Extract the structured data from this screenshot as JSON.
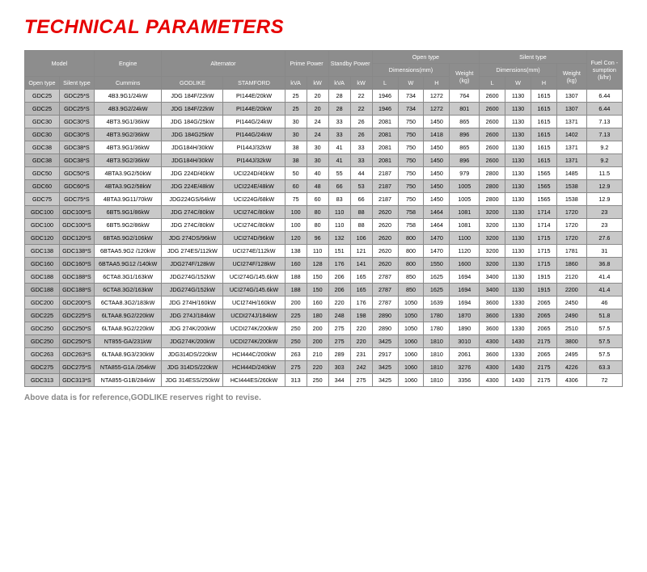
{
  "title": "TECHNICAL PARAMETERS",
  "footnote": "Above data is for reference,GODLIKE reserves right to revise.",
  "colors": {
    "title": "#e60000",
    "header_bg": "#8d8d8d",
    "header_fg": "#ffffff",
    "row_alt": "#c9c9c9",
    "row_alt_dark": "#b7b7b7",
    "border": "#888888"
  },
  "header": {
    "g_model": "Model",
    "g_engine": "Engine",
    "g_alt": "Alternator",
    "g_prime": "Prime Power",
    "g_standby": "Standby Power",
    "g_open": "Open type",
    "g_silent": "Silent type",
    "g_dim": "Dimensions(mm)",
    "g_weight": "Weight (kg)",
    "g_fc": "Fuel Con -sumption (li/hr)",
    "open": "Open type",
    "silent": "Silent type",
    "cummins": "Cummins",
    "godlike": "GODLIKE",
    "stamford": "STAMFORD",
    "kva": "kVA",
    "kw": "kW",
    "L": "L",
    "W": "W",
    "H": "H"
  },
  "rows": [
    {
      "ot": "GDC25",
      "st": "GDC25*S",
      "cu": "4B3.9G1/24kW",
      "go": "JDG 184F/22kW",
      "sf": "PI144E/20kW",
      "pk": "25",
      "pw": "20",
      "sk": "28",
      "sw": "22",
      "l": "1946",
      "w": "734",
      "h": "1272",
      "wt": "764",
      "l2": "2600",
      "w2": "1130",
      "h2": "1615",
      "wt2": "1307",
      "fc": "6.44"
    },
    {
      "ot": "GDC25",
      "st": "GDC25*S",
      "cu": "4B3.9G2/24kW",
      "go": "JDG 184F/22kW",
      "sf": "PI144E/20kW",
      "pk": "25",
      "pw": "20",
      "sk": "28",
      "sw": "22",
      "l": "1946",
      "w": "734",
      "h": "1272",
      "wt": "801",
      "l2": "2600",
      "w2": "1130",
      "h2": "1615",
      "wt2": "1307",
      "fc": "6.44"
    },
    {
      "ot": "GDC30",
      "st": "GDC30*S",
      "cu": "4BT3.9G1/36kW",
      "go": "JDG 184G/25kW",
      "sf": "PI144G/24kW",
      "pk": "30",
      "pw": "24",
      "sk": "33",
      "sw": "26",
      "l": "2081",
      "w": "750",
      "h": "1450",
      "wt": "865",
      "l2": "2600",
      "w2": "1130",
      "h2": "1615",
      "wt2": "1371",
      "fc": "7.13"
    },
    {
      "ot": "GDC30",
      "st": "GDC30*S",
      "cu": "4BT3.9G2/36kW",
      "go": "JDG 184G25kW",
      "sf": "PI144G/24kW",
      "pk": "30",
      "pw": "24",
      "sk": "33",
      "sw": "26",
      "l": "2081",
      "w": "750",
      "h": "1418",
      "wt": "896",
      "l2": "2600",
      "w2": "1130",
      "h2": "1615",
      "wt2": "1402",
      "fc": "7.13"
    },
    {
      "ot": "GDC38",
      "st": "GDC38*S",
      "cu": "4BT3.9G1/36kW",
      "go": "JDG184H/30kW",
      "sf": "PI144J/32kW",
      "pk": "38",
      "pw": "30",
      "sk": "41",
      "sw": "33",
      "l": "2081",
      "w": "750",
      "h": "1450",
      "wt": "865",
      "l2": "2600",
      "w2": "1130",
      "h2": "1615",
      "wt2": "1371",
      "fc": "9.2"
    },
    {
      "ot": "GDC38",
      "st": "GDC38*S",
      "cu": "4BT3.9G2/36kW",
      "go": "JDG184H/30kW",
      "sf": "PI144J/32kW",
      "pk": "38",
      "pw": "30",
      "sk": "41",
      "sw": "33",
      "l": "2081",
      "w": "750",
      "h": "1450",
      "wt": "896",
      "l2": "2600",
      "w2": "1130",
      "h2": "1615",
      "wt2": "1371",
      "fc": "9.2"
    },
    {
      "ot": "GDC50",
      "st": "GDC50*S",
      "cu": "4BTA3.9G2/50kW",
      "go": "JDG 224D/40kW",
      "sf": "UCI224D/40kW",
      "pk": "50",
      "pw": "40",
      "sk": "55",
      "sw": "44",
      "l": "2187",
      "w": "750",
      "h": "1450",
      "wt": "979",
      "l2": "2800",
      "w2": "1130",
      "h2": "1565",
      "wt2": "1485",
      "fc": "11.5"
    },
    {
      "ot": "GDC60",
      "st": "GDC60*S",
      "cu": "4BTA3.9G2/58kW",
      "go": "JDG 224E/48kW",
      "sf": "UCI224E/48kW",
      "pk": "60",
      "pw": "48",
      "sk": "66",
      "sw": "53",
      "l": "2187",
      "w": "750",
      "h": "1450",
      "wt": "1005",
      "l2": "2800",
      "w2": "1130",
      "h2": "1565",
      "wt2": "1538",
      "fc": "12.9"
    },
    {
      "ot": "GDC75",
      "st": "GDC75*S",
      "cu": "4BTA3.9G11/70kW",
      "go": "JDG224GS/64kW",
      "sf": "UCI224G/68kW",
      "pk": "75",
      "pw": "60",
      "sk": "83",
      "sw": "66",
      "l": "2187",
      "w": "750",
      "h": "1450",
      "wt": "1005",
      "l2": "2800",
      "w2": "1130",
      "h2": "1565",
      "wt2": "1538",
      "fc": "12.9"
    },
    {
      "ot": "GDC100",
      "st": "GDC100*S",
      "cu": "6BT5.9G1/86kW",
      "go": "JDG 274C/80kW",
      "sf": "UCI274C/80kW",
      "pk": "100",
      "pw": "80",
      "sk": "110",
      "sw": "88",
      "l": "2620",
      "w": "758",
      "h": "1464",
      "wt": "1081",
      "l2": "3200",
      "w2": "1130",
      "h2": "1714",
      "wt2": "1720",
      "fc": "23"
    },
    {
      "ot": "GDC100",
      "st": "GDC100*S",
      "cu": "6BT5.9G2/86kW",
      "go": "JDG 274C/80kW",
      "sf": "UCI274C/80kW",
      "pk": "100",
      "pw": "80",
      "sk": "110",
      "sw": "88",
      "l": "2620",
      "w": "758",
      "h": "1464",
      "wt": "1081",
      "l2": "3200",
      "w2": "1130",
      "h2": "1714",
      "wt2": "1720",
      "fc": "23"
    },
    {
      "ot": "GDC120",
      "st": "GDC120*S",
      "cu": "6BTA5.9G2/106kW",
      "go": "JDG 274DS/96kW",
      "sf": "UCI274D/96kW",
      "pk": "120",
      "pw": "96",
      "sk": "132",
      "sw": "106",
      "l": "2620",
      "w": "800",
      "h": "1470",
      "wt": "1100",
      "l2": "3200",
      "w2": "1130",
      "h2": "1715",
      "wt2": "1720",
      "fc": "27.6"
    },
    {
      "ot": "GDC138",
      "st": "GDC138*S",
      "cu": "6BTAA5.9G2 /120kW",
      "go": "JDG 274ES/112kW",
      "sf": "UCI274E/112kW",
      "pk": "138",
      "pw": "110",
      "sk": "151",
      "sw": "121",
      "l": "2620",
      "w": "800",
      "h": "1470",
      "wt": "1120",
      "l2": "3200",
      "w2": "1130",
      "h2": "1715",
      "wt2": "1781",
      "fc": "31"
    },
    {
      "ot": "GDC160",
      "st": "GDC160*S",
      "cu": "6BTAA5.9G12 /140kW",
      "go": "JDG274F/128kW",
      "sf": "UCI274F/128kW",
      "pk": "160",
      "pw": "128",
      "sk": "176",
      "sw": "141",
      "l": "2620",
      "w": "800",
      "h": "1550",
      "wt": "1600",
      "l2": "3200",
      "w2": "1130",
      "h2": "1715",
      "wt2": "1860",
      "fc": "36.8"
    },
    {
      "ot": "GDC188",
      "st": "GDC188*S",
      "cu": "6CTA8.3G1/163kW",
      "go": "JDG274G/152kW",
      "sf": "UCI274G/145.6kW",
      "pk": "188",
      "pw": "150",
      "sk": "206",
      "sw": "165",
      "l": "2787",
      "w": "850",
      "h": "1625",
      "wt": "1694",
      "l2": "3400",
      "w2": "1130",
      "h2": "1915",
      "wt2": "2120",
      "fc": "41.4"
    },
    {
      "ot": "GDC188",
      "st": "GDC188*S",
      "cu": "6CTA8.3G2/163kW",
      "go": "JDG274G/152kW",
      "sf": "UCI274G/145.6kW",
      "pk": "188",
      "pw": "150",
      "sk": "206",
      "sw": "165",
      "l": "2787",
      "w": "850",
      "h": "1625",
      "wt": "1694",
      "l2": "3400",
      "w2": "1130",
      "h2": "1915",
      "wt2": "2200",
      "fc": "41.4"
    },
    {
      "ot": "GDC200",
      "st": "GDC200*S",
      "cu": "6CTAA8.3G2/183kW",
      "go": "JDG 274H/160kW",
      "sf": "UCI274H/160kW",
      "pk": "200",
      "pw": "160",
      "sk": "220",
      "sw": "176",
      "l": "2787",
      "w": "1050",
      "h": "1639",
      "wt": "1694",
      "l2": "3600",
      "w2": "1330",
      "h2": "2065",
      "wt2": "2450",
      "fc": "46"
    },
    {
      "ot": "GDC225",
      "st": "GDC225*S",
      "cu": "6LTAA8.9G2/220kW",
      "go": "JDG 274J/184kW",
      "sf": "UCDI274J/184kW",
      "pk": "225",
      "pw": "180",
      "sk": "248",
      "sw": "198",
      "l": "2890",
      "w": "1050",
      "h": "1780",
      "wt": "1870",
      "l2": "3600",
      "w2": "1330",
      "h2": "2065",
      "wt2": "2490",
      "fc": "51.8"
    },
    {
      "ot": "GDC250",
      "st": "GDC250*S",
      "cu": "6LTAA8.9G2/220kW",
      "go": "JDG 274K/200kW",
      "sf": "UCDI274K/200kW",
      "pk": "250",
      "pw": "200",
      "sk": "275",
      "sw": "220",
      "l": "2890",
      "w": "1050",
      "h": "1780",
      "wt": "1890",
      "l2": "3600",
      "w2": "1330",
      "h2": "2065",
      "wt2": "2510",
      "fc": "57.5"
    },
    {
      "ot": "GDC250",
      "st": "GDC250*S",
      "cu": "NT855-GA/231kW",
      "go": "JDG274K/200kW",
      "sf": "UCDI274K/200kW",
      "pk": "250",
      "pw": "200",
      "sk": "275",
      "sw": "220",
      "l": "3425",
      "w": "1060",
      "h": "1810",
      "wt": "3010",
      "l2": "4300",
      "w2": "1430",
      "h2": "2175",
      "wt2": "3800",
      "fc": "57.5"
    },
    {
      "ot": "GDC263",
      "st": "GDC263*S",
      "cu": "6LTAA8.9G3/230kW",
      "go": "JDG314DS/220kW",
      "sf": "HCI444C/200kW",
      "pk": "263",
      "pw": "210",
      "sk": "289",
      "sw": "231",
      "l": "2917",
      "w": "1060",
      "h": "1810",
      "wt": "2061",
      "l2": "3600",
      "w2": "1330",
      "h2": "2065",
      "wt2": "2495",
      "fc": "57.5"
    },
    {
      "ot": "GDC275",
      "st": "GDC275*S",
      "cu": "NTA855-G1A /264kW",
      "go": "JDG 314DS/220kW",
      "sf": "HCI444D/240kW",
      "pk": "275",
      "pw": "220",
      "sk": "303",
      "sw": "242",
      "l": "3425",
      "w": "1060",
      "h": "1810",
      "wt": "3276",
      "l2": "4300",
      "w2": "1430",
      "h2": "2175",
      "wt2": "4226",
      "fc": "63.3"
    },
    {
      "ot": "GDC313",
      "st": "GDC313*S",
      "cu": "NTA855-G1B/284kW",
      "go": "JDG 314ESS/250kW",
      "sf": "HCI444ES/260kW",
      "pk": "313",
      "pw": "250",
      "sk": "344",
      "sw": "275",
      "l": "3425",
      "w": "1060",
      "h": "1810",
      "wt": "3356",
      "l2": "4300",
      "w2": "1430",
      "h2": "2175",
      "wt2": "4306",
      "fc": "72"
    }
  ]
}
